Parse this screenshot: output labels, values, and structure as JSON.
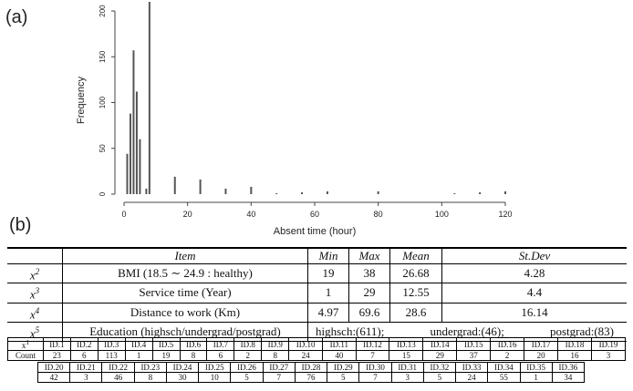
{
  "panel_a_label": "(a)",
  "panel_b_label": "(b)",
  "chart_data": {
    "type": "bar",
    "xlabel": "Absent time (hour)",
    "ylabel": "Frequency",
    "xlim": [
      0,
      120
    ],
    "ylim": [
      0,
      210
    ],
    "x_ticks": [
      "0",
      "20",
      "40",
      "60",
      "80",
      "100",
      "120"
    ],
    "y_ticks": [
      "0",
      "50",
      "100",
      "150",
      "200"
    ],
    "x": [
      1,
      2,
      3,
      4,
      5,
      7,
      8,
      16,
      24,
      32,
      40,
      48,
      56,
      64,
      80,
      104,
      112,
      120
    ],
    "values": [
      44,
      88,
      157,
      112,
      60,
      6,
      210,
      19,
      16,
      6,
      8,
      1,
      2,
      3,
      3,
      1,
      2,
      3
    ]
  },
  "table": {
    "headers": {
      "item": "Item",
      "min": "Min",
      "max": "Max",
      "mean": "Mean",
      "sd": "St.Dev"
    },
    "rows": [
      {
        "var_base": "x",
        "var_sup": "2",
        "item": "BMI (18.5 ∼ 24.9 : healthy)",
        "min": "19",
        "max": "38",
        "mean": "26.68",
        "sd": "4.28"
      },
      {
        "var_base": "x",
        "var_sup": "3",
        "item": "Service time (Year)",
        "min": "1",
        "max": "29",
        "mean": "12.55",
        "sd": "4.4"
      },
      {
        "var_base": "x",
        "var_sup": "4",
        "item": "Distance to work (Km)",
        "min": "4.97",
        "max": "69.6",
        "mean": "28.6",
        "sd": "16.14"
      }
    ],
    "education": {
      "var_base": "x",
      "var_sup": "5",
      "item": "Education (highsch/undergrad/postgrad)",
      "highsch": "highsch:(611);",
      "undergrad": "undergrad:(46);",
      "postgrad": "postgrad:(83)"
    }
  },
  "id_counts": {
    "var_base": "x",
    "var_sup": "1",
    "count_label": "Count",
    "row1": {
      "ids": [
        "ID.1",
        "ID.2",
        "ID.3",
        "ID.4",
        "ID.5",
        "ID.6",
        "ID.7",
        "ID.8",
        "ID.9",
        "ID.10",
        "ID.11",
        "ID.12",
        "ID.13",
        "ID.14",
        "ID.15",
        "ID.16",
        "ID.17",
        "ID.18",
        "ID.19"
      ],
      "counts": [
        "23",
        "6",
        "113",
        "1",
        "19",
        "8",
        "6",
        "2",
        "8",
        "24",
        "40",
        "7",
        "15",
        "29",
        "37",
        "2",
        "20",
        "16",
        "3"
      ]
    },
    "row2": {
      "ids": [
        "ID.20",
        "ID.21",
        "ID.22",
        "ID.23",
        "ID.24",
        "ID.25",
        "ID.26",
        "ID.27",
        "ID.28",
        "ID.29",
        "ID.30",
        "ID.31",
        "ID.32",
        "ID.33",
        "ID.34",
        "ID.35",
        "ID.36"
      ],
      "counts": [
        "42",
        "3",
        "46",
        "8",
        "30",
        "10",
        "5",
        "7",
        "76",
        "5",
        "7",
        "3",
        "5",
        "24",
        "55",
        "1",
        "34"
      ]
    }
  }
}
